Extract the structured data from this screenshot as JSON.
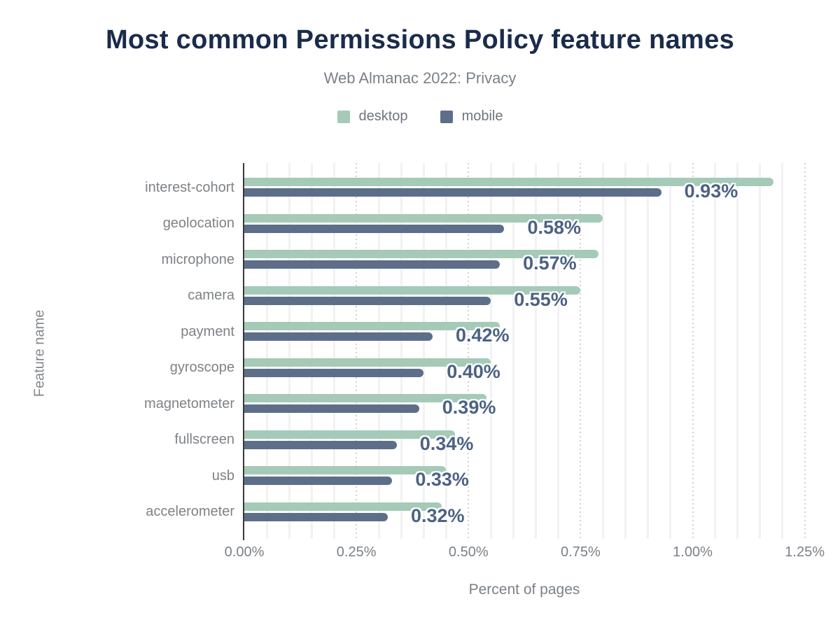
{
  "title": "Most common Permissions Policy feature names",
  "subtitle": "Web Almanac 2022: Privacy",
  "legend": [
    {
      "label": "desktop",
      "color": "#a5cab7"
    },
    {
      "label": "mobile",
      "color": "#5d6e89"
    }
  ],
  "chart_data": {
    "type": "bar",
    "orientation": "horizontal",
    "title": "Most common Permissions Policy feature names",
    "subtitle": "Web Almanac 2022: Privacy",
    "xlabel": "Percent of pages",
    "ylabel": "Feature name",
    "xlim": [
      0,
      1.25
    ],
    "x_tick_labels": [
      "0.00%",
      "0.25%",
      "0.50%",
      "0.75%",
      "1.00%",
      "1.25%"
    ],
    "grid": {
      "minor_step_pct": 0.05,
      "major_step_pct": 0.25,
      "style": "vertical"
    },
    "legend_position": "top",
    "categories": [
      "interest-cohort",
      "geolocation",
      "microphone",
      "camera",
      "payment",
      "gyroscope",
      "magnetometer",
      "fullscreen",
      "usb",
      "accelerometer"
    ],
    "series": [
      {
        "name": "desktop",
        "color": "#a5cab7",
        "values": [
          1.18,
          0.8,
          0.79,
          0.75,
          0.57,
          0.55,
          0.54,
          0.47,
          0.45,
          0.44
        ]
      },
      {
        "name": "mobile",
        "color": "#5d6e89",
        "values": [
          0.93,
          0.58,
          0.57,
          0.55,
          0.42,
          0.4,
          0.39,
          0.34,
          0.33,
          0.32
        ]
      }
    ],
    "bar_labels": [
      "0.93%",
      "0.58%",
      "0.57%",
      "0.55%",
      "0.42%",
      "0.40%",
      "0.39%",
      "0.34%",
      "0.33%",
      "0.32%"
    ],
    "bar_labels_series": "mobile"
  },
  "colors": {
    "title": "#1b2b4b",
    "subtitle": "#7b8187",
    "axis_text": "#7b8187",
    "category_text": "#7e8286",
    "value_label": "#4c6284",
    "axis_line": "#38383c",
    "gridline_minor": "#f3f1f3",
    "gridline_major": "#d2d0d4",
    "background": "#ffffff"
  }
}
